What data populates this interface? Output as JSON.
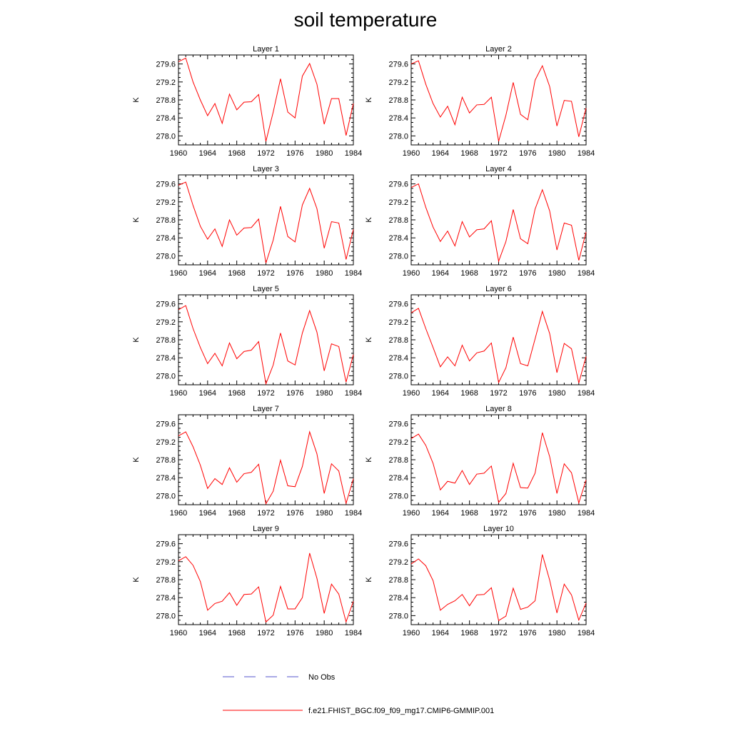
{
  "title": "soil temperature",
  "chart_data": {
    "type": "line",
    "x": [
      1960,
      1961,
      1962,
      1963,
      1964,
      1965,
      1966,
      1967,
      1968,
      1969,
      1970,
      1971,
      1972,
      1973,
      1974,
      1975,
      1976,
      1977,
      1978,
      1979,
      1980,
      1981,
      1982,
      1983,
      1984
    ],
    "x_ticks": [
      1960,
      1964,
      1968,
      1972,
      1976,
      1980,
      1984
    ],
    "y_ticks": [
      278.0,
      278.4,
      278.8,
      279.2,
      279.6
    ],
    "y_tick_labels": [
      "278.0",
      "278.4",
      "278.8",
      "279.2",
      "279.6"
    ],
    "xlim": [
      1960,
      1984
    ],
    "ylim": [
      277.8,
      279.8
    ],
    "ylabel": "K",
    "panels": [
      {
        "title": "Layer 1",
        "values": [
          279.65,
          279.73,
          279.2,
          278.8,
          278.45,
          278.72,
          278.28,
          278.93,
          278.58,
          278.75,
          278.76,
          278.92,
          277.88,
          278.53,
          279.27,
          278.53,
          278.4,
          279.33,
          279.61,
          279.15,
          278.26,
          278.83,
          278.83,
          278.01,
          278.72
        ]
      },
      {
        "title": "Layer 2",
        "values": [
          279.6,
          279.67,
          279.15,
          278.72,
          278.42,
          278.66,
          278.25,
          278.86,
          278.51,
          278.69,
          278.7,
          278.86,
          277.88,
          278.46,
          279.19,
          278.48,
          278.36,
          279.24,
          279.56,
          279.1,
          278.22,
          278.79,
          278.77,
          277.98,
          278.62
        ]
      },
      {
        "title": "Layer 3",
        "values": [
          279.57,
          279.64,
          279.12,
          278.66,
          278.37,
          278.6,
          278.21,
          278.8,
          278.46,
          278.62,
          278.63,
          278.82,
          277.84,
          278.35,
          279.1,
          278.43,
          278.31,
          279.13,
          279.5,
          279.05,
          278.17,
          278.76,
          278.73,
          277.92,
          278.59
        ]
      },
      {
        "title": "Layer 4",
        "values": [
          279.52,
          279.6,
          279.08,
          278.64,
          278.32,
          278.55,
          278.22,
          278.76,
          278.42,
          278.58,
          278.6,
          278.78,
          277.88,
          278.32,
          279.03,
          278.38,
          278.27,
          279.04,
          279.47,
          279.0,
          278.13,
          278.73,
          278.68,
          277.9,
          278.53
        ]
      },
      {
        "title": "Layer 5",
        "values": [
          279.47,
          279.56,
          279.05,
          278.63,
          278.27,
          278.5,
          278.22,
          278.73,
          278.38,
          278.54,
          278.57,
          278.76,
          277.82,
          278.24,
          278.95,
          278.33,
          278.24,
          278.95,
          279.45,
          278.97,
          278.11,
          278.71,
          278.65,
          277.86,
          278.47
        ]
      },
      {
        "title": "Layer 6",
        "values": [
          279.4,
          279.5,
          279.05,
          278.63,
          278.2,
          278.42,
          278.22,
          278.68,
          278.33,
          278.51,
          278.55,
          278.73,
          277.85,
          278.18,
          278.86,
          278.27,
          278.22,
          278.82,
          279.43,
          278.94,
          278.07,
          278.72,
          278.6,
          277.84,
          278.43
        ]
      },
      {
        "title": "Layer 7",
        "values": [
          279.33,
          279.42,
          279.09,
          278.68,
          278.16,
          278.38,
          278.25,
          278.62,
          278.3,
          278.49,
          278.52,
          278.7,
          277.82,
          278.1,
          278.79,
          278.22,
          278.2,
          278.65,
          279.42,
          278.93,
          278.05,
          278.71,
          278.55,
          277.83,
          278.38
        ]
      },
      {
        "title": "Layer 8",
        "values": [
          279.27,
          279.37,
          279.12,
          278.72,
          278.13,
          278.32,
          278.28,
          278.56,
          278.25,
          278.48,
          278.5,
          278.66,
          277.85,
          278.05,
          278.72,
          278.18,
          278.17,
          278.5,
          279.4,
          278.87,
          278.05,
          278.71,
          278.51,
          277.84,
          278.35
        ]
      },
      {
        "title": "Layer 9",
        "values": [
          279.22,
          279.31,
          279.12,
          278.76,
          278.12,
          278.27,
          278.32,
          278.51,
          278.23,
          278.47,
          278.48,
          278.64,
          277.86,
          278.01,
          278.65,
          278.15,
          278.15,
          278.4,
          279.39,
          278.83,
          278.05,
          278.7,
          278.48,
          277.86,
          278.32
        ]
      },
      {
        "title": "Layer 10",
        "values": [
          279.15,
          279.26,
          279.11,
          278.78,
          278.12,
          278.25,
          278.33,
          278.47,
          278.22,
          278.46,
          278.47,
          278.62,
          277.89,
          277.99,
          278.61,
          278.14,
          278.19,
          278.33,
          279.36,
          278.79,
          278.06,
          278.7,
          278.46,
          277.9,
          278.28
        ]
      }
    ],
    "legend": [
      {
        "label": "No Obs",
        "color": "#5555cc",
        "style": "dashed"
      },
      {
        "label": "f.e21.FHIST_BGC.f09_f09_mg17.CMIP6-GMMIP.001",
        "color": "#ff0000",
        "style": "solid"
      }
    ],
    "series_color": "#ff0000"
  }
}
